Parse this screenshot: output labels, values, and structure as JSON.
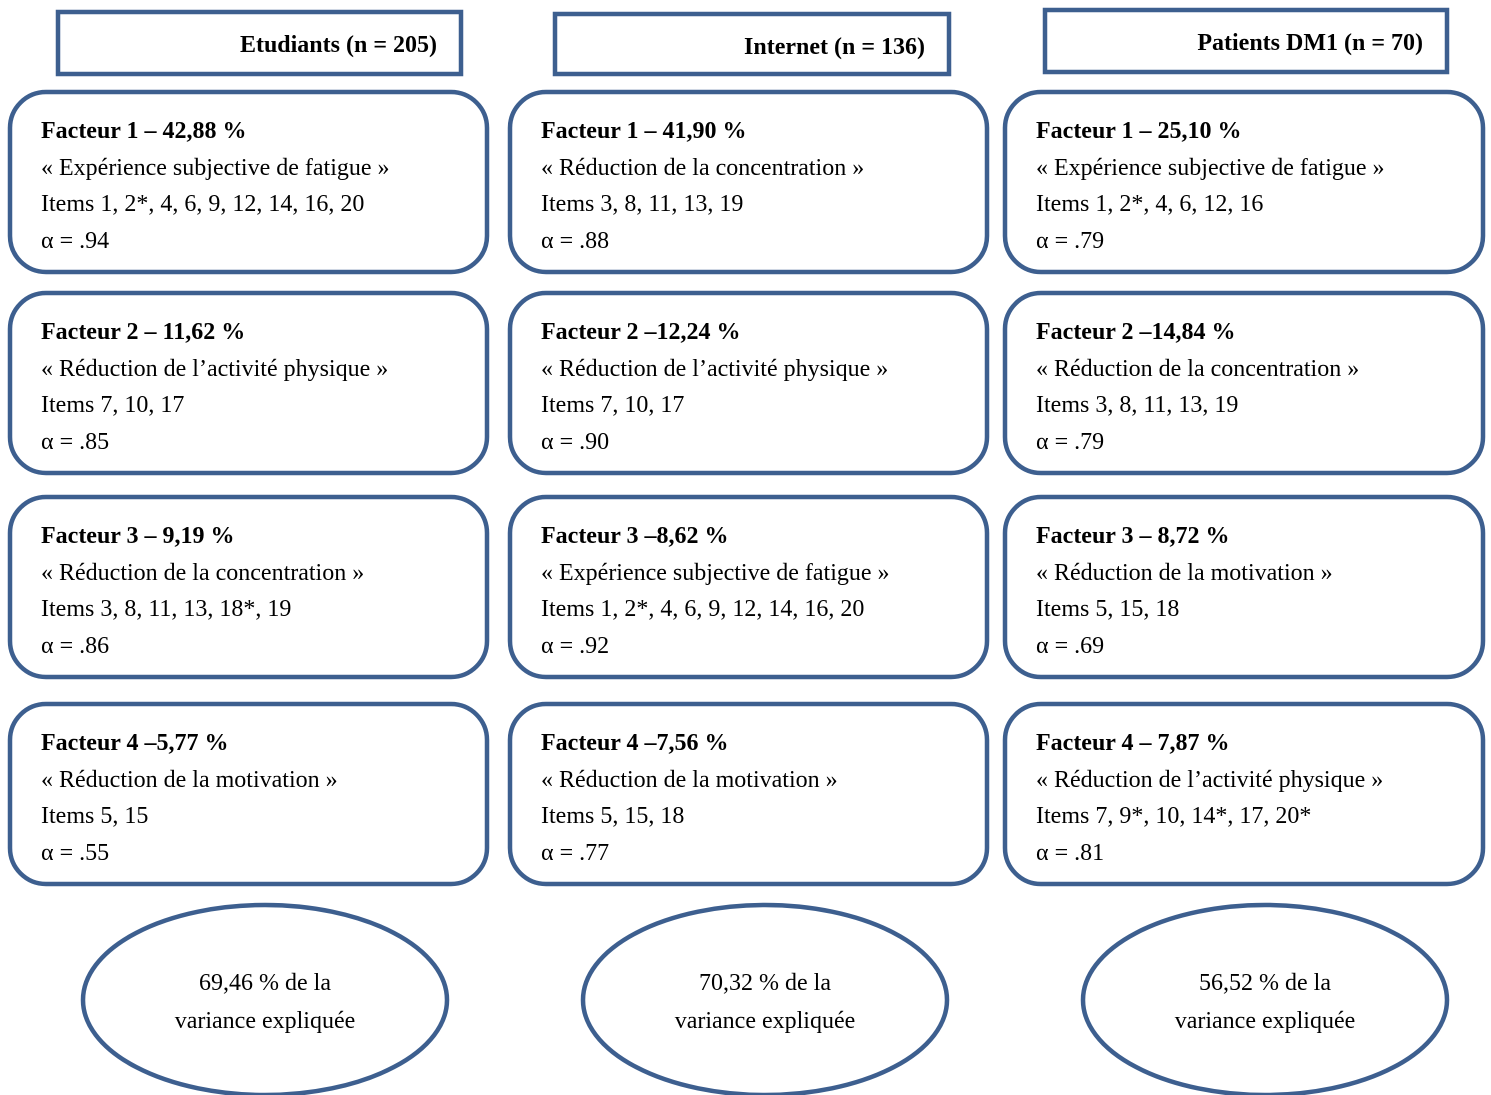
{
  "columns": [
    {
      "header": "Etudiants (n = 205)",
      "factors": [
        {
          "title": "Facteur 1 – 42,88 %",
          "label": "« Expérience subjective de fatigue »",
          "items": "Items 1, 2*, 4, 6, 9, 12, 14, 16, 20",
          "alpha": "α = .94"
        },
        {
          "title": "Facteur 2 –  11,62 %",
          "label": "« Réduction de l’activité physique »",
          "items": "Items 7, 10, 17",
          "alpha": "α = .85"
        },
        {
          "title": "Facteur 3 – 9,19 %",
          "label": "« Réduction de la concentration »",
          "items": "Items 3, 8, 11, 13, 18*, 19",
          "alpha": "α = .86"
        },
        {
          "title": "Facteur 4 –5,77 %",
          "label": "« Réduction de la motivation »",
          "items": "Items 5, 15",
          "alpha": "α = .55"
        }
      ],
      "variance": [
        "69,46 % de la",
        "variance expliquée"
      ]
    },
    {
      "header": "Internet (n = 136)",
      "factors": [
        {
          "title": "Facteur 1 –  41,90 %",
          "label": "« Réduction de la concentration »",
          "items": "Items 3, 8, 11, 13, 19",
          "alpha": "α = .88"
        },
        {
          "title": "Facteur 2 –12,24 %",
          "label": "« Réduction de l’activité physique »",
          "items": "Items 7, 10, 17",
          "alpha": "α = .90"
        },
        {
          "title": "Facteur 3 –8,62 %",
          "label": "« Expérience subjective de fatigue »",
          "items": "Items 1, 2*, 4, 6, 9, 12, 14, 16, 20",
          "alpha": "α = .92"
        },
        {
          "title": "Facteur 4 –7,56 %",
          "label": "« Réduction de la motivation »",
          "items": "Items 5, 15, 18",
          "alpha": "α = .77"
        }
      ],
      "variance": [
        "70,32 % de la",
        "variance expliquée"
      ]
    },
    {
      "header": "Patients DM1 (n = 70)",
      "factors": [
        {
          "title": "Facteur 1 – 25,10 %",
          "label": "« Expérience subjective de fatigue »",
          "items": "Items 1, 2*, 4, 6, 12, 16",
          "alpha": "α = .79"
        },
        {
          "title": "Facteur 2 –14,84 %",
          "label": "« Réduction de la concentration »",
          "items": "Items 3, 8, 11, 13, 19",
          "alpha": "α = .79"
        },
        {
          "title": "Facteur 3 – 8,72 %",
          "label": "« Réduction de la motivation »",
          "items": "Items 5, 15, 18",
          "alpha": "α = .69"
        },
        {
          "title": "Facteur 4 – 7,87 %",
          "label": "« Réduction de l’activité physique »",
          "items": "Items 7, 9*, 10, 14*, 17, 20*",
          "alpha": "α = .81"
        }
      ],
      "variance": [
        "56,52 % de la",
        "variance expliquée"
      ]
    }
  ]
}
